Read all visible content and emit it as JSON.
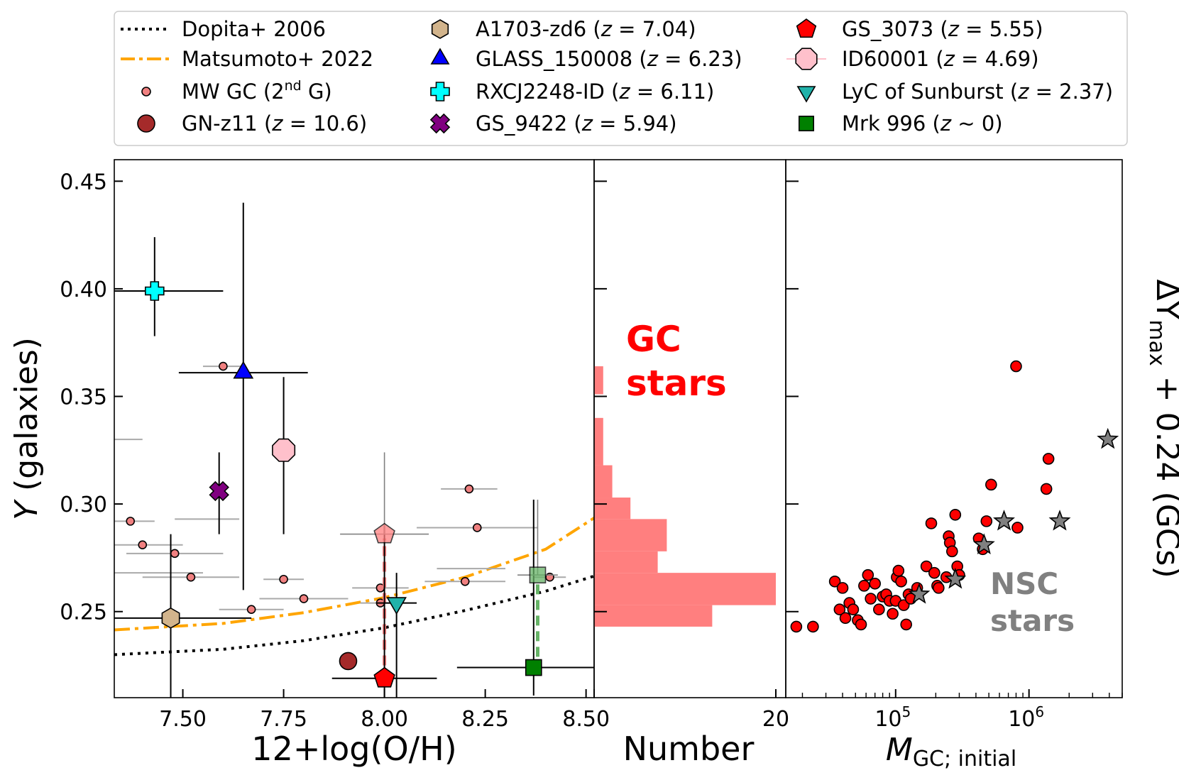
{
  "legend": {
    "entries": [
      {
        "label": "Dopita+ 2006",
        "marker": "line-dotted",
        "color": "#000000"
      },
      {
        "label": "Matsumoto+ 2022",
        "marker": "line-dashdot",
        "color": "#ffa500"
      },
      {
        "label": "MW GC (2",
        "sup": "nd",
        "tail": " G)",
        "marker": "small-circle",
        "color": "#f08080"
      },
      {
        "label": "GN-z11 (",
        "z": "z",
        "tail": " = 10.6)",
        "marker": "circle",
        "color": "#a52a2a"
      },
      {
        "label": "A1703-zd6 (",
        "z": "z",
        "tail": " = 7.04)",
        "marker": "hexagon",
        "color": "#d2b48c"
      },
      {
        "label": "GLASS_150008 (",
        "z": "z",
        "tail": " = 6.23)",
        "marker": "triangle-up",
        "color": "#0000ff"
      },
      {
        "label": "RXCJ2248-ID (",
        "z": "z",
        "tail": " = 6.11)",
        "marker": "plus",
        "color": "#00ffff"
      },
      {
        "label": "GS_9422 (",
        "z": "z",
        "tail": " = 5.94)",
        "marker": "x",
        "color": "#800080"
      },
      {
        "label": "GS_3073 (",
        "z": "z",
        "tail": " = 5.55)",
        "marker": "pentagon",
        "color": "#ff0000"
      },
      {
        "label": "ID60001 (",
        "z": "z",
        "tail": " = 4.69)",
        "marker": "octagon",
        "color": "#ffc0cb"
      },
      {
        "label": "LyC of Sunburst (",
        "z": "z",
        "tail": " = 2.37)",
        "marker": "triangle-down",
        "color": "#20b2aa"
      },
      {
        "label": "Mrk 996 (",
        "z": "z",
        "tail": " ~ 0)",
        "marker": "square",
        "color": "#008000"
      }
    ]
  },
  "chart_data": [
    {
      "type": "scatter",
      "panel": "left",
      "xlabel": "12+log(O/H)",
      "ylabel": "Y (galaxies)",
      "ylabel_italic": "Y",
      "ylabel_rest": " (galaxies)",
      "xlim": [
        7.33,
        8.52
      ],
      "ylim": [
        0.21,
        0.46
      ],
      "xticks": [
        "7.50",
        "7.75",
        "8.00",
        "8.25",
        "8.50"
      ],
      "yticks": [
        "0.25",
        "0.30",
        "0.35",
        "0.40",
        "0.45"
      ],
      "models": [
        {
          "name": "Dopita+ 2006",
          "color": "#000000",
          "style": "dotted",
          "y_at": [
            [
              7.33,
              0.23
            ],
            [
              7.6,
              0.2325
            ],
            [
              7.8,
              0.2365
            ],
            [
              8.0,
              0.2425
            ],
            [
              8.2,
              0.2505
            ],
            [
              8.4,
              0.2595
            ],
            [
              8.52,
              0.2665
            ]
          ]
        },
        {
          "name": "Matsumoto+ 2022",
          "color": "#ffa500",
          "style": "dashdot",
          "y_at": [
            [
              7.33,
              0.2415
            ],
            [
              7.6,
              0.2445
            ],
            [
              7.8,
              0.2495
            ],
            [
              8.0,
              0.2565
            ],
            [
              8.2,
              0.266
            ],
            [
              8.4,
              0.279
            ],
            [
              8.52,
              0.2935
            ]
          ]
        }
      ],
      "mw_gc": [
        {
          "x": 7.37,
          "y": 0.292,
          "xerr": 0.06,
          "yerr": 0
        },
        {
          "x": 7.4,
          "y": 0.281,
          "xerr": 0.1,
          "yerr": 0
        },
        {
          "x": 7.48,
          "y": 0.277,
          "xerr": 0.12,
          "yerr": 0
        },
        {
          "x": 7.52,
          "y": 0.266,
          "xerr": 0.12,
          "yerr": 0
        },
        {
          "x": 7.6,
          "y": 0.364,
          "xerr": 0.05,
          "yerr": 0
        },
        {
          "x": 7.67,
          "y": 0.251,
          "xerr": 0.08,
          "yerr": 0
        },
        {
          "x": 7.75,
          "y": 0.265,
          "xerr": 0.05,
          "yerr": 0
        },
        {
          "x": 7.8,
          "y": 0.256,
          "xerr": 0.11,
          "yerr": 0
        },
        {
          "x": 7.99,
          "y": 0.261,
          "xerr": 0.07,
          "yerr": 0
        },
        {
          "x": 7.99,
          "y": 0.254,
          "xerr": 0.05,
          "yerr": 0
        },
        {
          "x": 8.2,
          "y": 0.264,
          "xerr": 0.1,
          "yerr": 0
        },
        {
          "x": 8.21,
          "y": 0.307,
          "xerr": 0.07,
          "yerr": 0
        },
        {
          "x": 8.23,
          "y": 0.289,
          "xerr": 0.15,
          "yerr": 0
        },
        {
          "x": 8.41,
          "y": 0.266,
          "xerr": 0.04,
          "yerr": 0
        }
      ],
      "mw_gc_extra_hbars": [
        {
          "x1": 7.33,
          "x2": 7.4,
          "y": 0.33
        },
        {
          "x1": 7.33,
          "x2": 7.55,
          "y": 0.268
        },
        {
          "x1": 7.48,
          "x2": 7.64,
          "y": 0.293
        },
        {
          "x1": 8.13,
          "x2": 8.3,
          "y": 0.27
        }
      ],
      "galaxies": [
        {
          "name": "GN-z11",
          "marker": "circle",
          "color": "#a52a2a",
          "x": 7.91,
          "y": 0.227,
          "xerr": 0,
          "yerr": 0
        },
        {
          "name": "A1703-zd6",
          "marker": "hexagon",
          "color": "#d2b48c",
          "x": 7.47,
          "y": 0.247,
          "xerr": 0.2,
          "yerr_lo": 0.04,
          "yerr_hi": 0.039
        },
        {
          "name": "GLASS_150008",
          "marker": "triangle-up",
          "color": "#0000ff",
          "x": 7.65,
          "y": 0.361,
          "xerr": 0.16,
          "yerr_lo": 0.101,
          "yerr_hi": 0.079
        },
        {
          "name": "RXCJ2248-ID",
          "marker": "plus",
          "color": "#00ffff",
          "x": 7.43,
          "y": 0.399,
          "xerr": 0.17,
          "yerr_lo": 0.021,
          "yerr_hi": 0.025
        },
        {
          "name": "GS_9422",
          "marker": "x",
          "color": "#800080",
          "x": 7.59,
          "y": 0.306,
          "xerr": 0,
          "yerr_lo": 0.02,
          "yerr_hi": 0.018
        },
        {
          "name": "GS_3073",
          "marker": "pentagon",
          "color": "#ff0000",
          "x": 8.0,
          "y": 0.219,
          "xerr": 0.13,
          "yerr_lo": 0.01,
          "yerr_hi": 0.071
        },
        {
          "name": "GS_3073 (upper)",
          "marker": "pentagon",
          "color": "#ff7f7f",
          "x": 8.0,
          "y": 0.286,
          "xerr": 0.11,
          "yerr_lo": 0.0,
          "yerr_hi": 0.038,
          "faded": true
        },
        {
          "name": "ID60001",
          "marker": "octagon",
          "color": "#ffc0cb",
          "x": 7.75,
          "y": 0.325,
          "xerr": 0,
          "yerr_lo": 0.039,
          "yerr_hi": 0.034
        },
        {
          "name": "LyC of Sunburst",
          "marker": "triangle-down",
          "color": "#20b2aa",
          "x": 8.03,
          "y": 0.254,
          "xerr": 0.05,
          "yerr_lo": 0.044,
          "yerr_hi": 0.014
        },
        {
          "name": "Mrk 996",
          "marker": "square",
          "color": "#008000",
          "x": 8.37,
          "y": 0.224,
          "xerr": 0.19,
          "yerr_lo": 0.013,
          "yerr_hi": 0.078
        },
        {
          "name": "Mrk 996 (upper)",
          "marker": "square",
          "color": "#66b266",
          "x": 8.38,
          "y": 0.267,
          "xerr": 0.05,
          "yerr_lo": 0,
          "yerr_hi": 0.035,
          "faded": true
        }
      ]
    },
    {
      "type": "bar",
      "panel": "middle",
      "orientation": "horizontal",
      "xlabel": "Number",
      "xticks": [
        "20"
      ],
      "bins": [
        {
          "y0": 0.243,
          "y1": 0.253,
          "count": 13
        },
        {
          "y0": 0.253,
          "y1": 0.268,
          "count": 20
        },
        {
          "y0": 0.268,
          "y1": 0.278,
          "count": 7
        },
        {
          "y0": 0.278,
          "y1": 0.293,
          "count": 8
        },
        {
          "y0": 0.293,
          "y1": 0.303,
          "count": 4
        },
        {
          "y0": 0.303,
          "y1": 0.318,
          "count": 2
        },
        {
          "y0": 0.318,
          "y1": 0.34,
          "count": 1
        },
        {
          "y0": 0.351,
          "y1": 0.364,
          "count": 1
        }
      ],
      "color": "#ff7f7f",
      "annotation": "GC stars",
      "annotation_lines": [
        "GC",
        "stars"
      ],
      "annotation_color": "#ff0000"
    },
    {
      "type": "scatter",
      "panel": "right",
      "xscale": "log",
      "xlabel": "M_GC; initial",
      "xlabel_main": "M",
      "xlabel_sub": "GC; initial",
      "ylabel": "ΔY_max + 0.24 (GCs)",
      "ylabel_parts": {
        "pre": "ΔY",
        "sub": "max",
        "post": " + 0.24 (GCs)"
      },
      "xlim": [
        15000,
        5000000
      ],
      "xticks": [
        {
          "base": "10",
          "exp": "5"
        },
        {
          "base": "10",
          "exp": "6"
        }
      ],
      "gc_points": [
        [
          18000,
          0.243
        ],
        [
          24000,
          0.243
        ],
        [
          35000,
          0.264
        ],
        [
          38000,
          0.251
        ],
        [
          40000,
          0.261
        ],
        [
          42000,
          0.247
        ],
        [
          45000,
          0.254
        ],
        [
          48000,
          0.251
        ],
        [
          52000,
          0.246
        ],
        [
          55000,
          0.244
        ],
        [
          58000,
          0.262
        ],
        [
          62000,
          0.267
        ],
        [
          65000,
          0.256
        ],
        [
          70000,
          0.263
        ],
        [
          75000,
          0.251
        ],
        [
          80000,
          0.257
        ],
        [
          85000,
          0.258
        ],
        [
          90000,
          0.255
        ],
        [
          95000,
          0.249
        ],
        [
          100000,
          0.255
        ],
        [
          102000,
          0.266
        ],
        [
          105000,
          0.269
        ],
        [
          110000,
          0.264
        ],
        [
          115000,
          0.253
        ],
        [
          120000,
          0.244
        ],
        [
          125000,
          0.258
        ],
        [
          130000,
          0.256
        ],
        [
          145000,
          0.261
        ],
        [
          170000,
          0.271
        ],
        [
          185000,
          0.291
        ],
        [
          195000,
          0.268
        ],
        [
          205000,
          0.262
        ],
        [
          210000,
          0.261
        ],
        [
          240000,
          0.266
        ],
        [
          250000,
          0.285
        ],
        [
          255000,
          0.282
        ],
        [
          265000,
          0.278
        ],
        [
          280000,
          0.295
        ],
        [
          290000,
          0.271
        ],
        [
          300000,
          0.267
        ],
        [
          420000,
          0.284
        ],
        [
          450000,
          0.279
        ],
        [
          480000,
          0.292
        ],
        [
          520000,
          0.309
        ],
        [
          820000,
          0.289
        ],
        [
          800000,
          0.364
        ],
        [
          1400000,
          0.321
        ],
        [
          1350000,
          0.307
        ]
      ],
      "nsc_points": [
        [
          150000,
          0.258
        ],
        [
          280000,
          0.265
        ],
        [
          460000,
          0.281
        ],
        [
          650000,
          0.292
        ],
        [
          1700000,
          0.292
        ],
        [
          3900000,
          0.33
        ]
      ],
      "gc_color": "#ff0000",
      "nsc_color": "#808080",
      "annotation": "NSC stars",
      "annotation_lines": [
        "NSC",
        "stars"
      ],
      "annotation_color": "#808080"
    }
  ]
}
